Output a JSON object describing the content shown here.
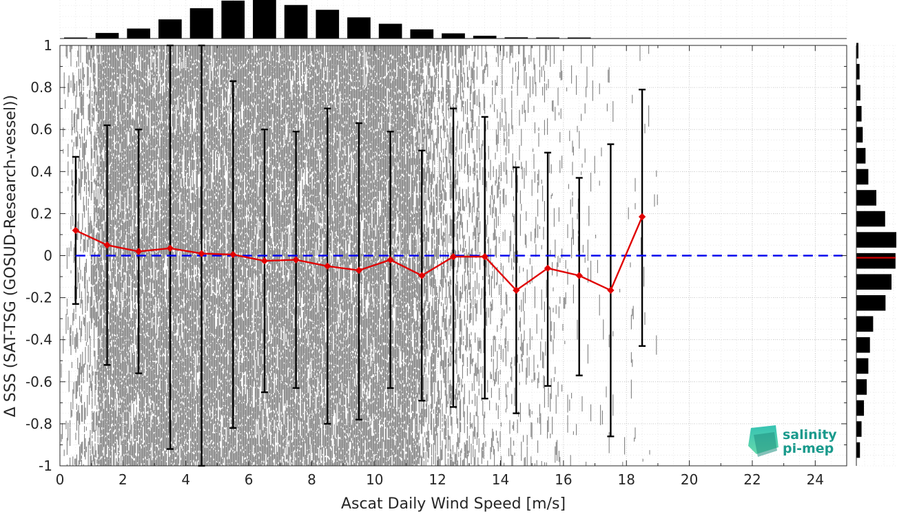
{
  "chart_data": {
    "type": "scatter",
    "xlabel": "Ascat Daily Wind Speed [m/s]",
    "ylabel": "Δ SSS (SAT-TSG (GOSUD-Research-vessel))",
    "xlim": [
      0,
      25
    ],
    "ylim": [
      -1,
      1
    ],
    "x_ticks": [
      0,
      2,
      4,
      6,
      8,
      10,
      12,
      14,
      16,
      18,
      20,
      22,
      24
    ],
    "y_ticks": [
      -1,
      -0.8,
      -0.6,
      -0.4,
      -0.2,
      0,
      0.2,
      0.4,
      0.6,
      0.8,
      1
    ],
    "grid": true,
    "reference_line": {
      "y": 0,
      "color": "#0000ee",
      "style": "dashed"
    },
    "scatter_color": "#808080",
    "mean_series": {
      "color": "#e00000",
      "x": [
        0.5,
        1.5,
        2.5,
        3.5,
        4.5,
        5.5,
        6.5,
        7.5,
        8.5,
        9.5,
        10.5,
        11.5,
        12.5,
        13.5,
        14.5,
        15.5,
        16.5,
        17.5,
        18.5
      ],
      "y": [
        0.12,
        0.05,
        0.02,
        0.035,
        0.01,
        0.005,
        -0.025,
        -0.02,
        -0.05,
        -0.07,
        -0.02,
        -0.095,
        -0.005,
        -0.005,
        -0.165,
        -0.06,
        -0.095,
        -0.165,
        0.185
      ]
    },
    "error_bars": {
      "color": "#000000",
      "lower": [
        -0.23,
        -0.52,
        -0.56,
        -0.92,
        -1.0,
        -0.82,
        -0.65,
        -0.63,
        -0.8,
        -0.78,
        -0.63,
        -0.69,
        -0.72,
        -0.68,
        -0.75,
        -0.62,
        -0.57,
        -0.86,
        -0.43
      ],
      "upper": [
        0.47,
        0.62,
        0.6,
        1.0,
        1.0,
        0.83,
        0.6,
        0.59,
        0.7,
        0.63,
        0.59,
        0.5,
        0.7,
        0.66,
        0.42,
        0.49,
        0.37,
        0.53,
        0.79
      ]
    },
    "top_histogram": {
      "bins": [
        0.5,
        1.5,
        2.5,
        3.5,
        4.5,
        5.5,
        6.5,
        7.5,
        8.5,
        9.5,
        10.5,
        11.5,
        12.5,
        13.5,
        14.5,
        15.5,
        16.5
      ],
      "relative_counts": [
        0.01,
        0.14,
        0.25,
        0.48,
        0.76,
        0.95,
        1.0,
        0.84,
        0.72,
        0.53,
        0.37,
        0.23,
        0.13,
        0.07,
        0.03,
        0.02,
        0.01
      ]
    },
    "right_histogram": {
      "bins": [
        0.975,
        0.875,
        0.775,
        0.675,
        0.575,
        0.475,
        0.375,
        0.275,
        0.175,
        0.075,
        -0.025,
        -0.125,
        -0.225,
        -0.325,
        -0.425,
        -0.525,
        -0.625,
        -0.725,
        -0.825,
        -0.925
      ],
      "relative_counts": [
        0.05,
        0.08,
        0.1,
        0.13,
        0.16,
        0.23,
        0.3,
        0.5,
        0.72,
        1.0,
        0.98,
        0.88,
        0.73,
        0.42,
        0.34,
        0.3,
        0.26,
        0.19,
        0.13,
        0.09
      ],
      "median_line": {
        "y": -0.01,
        "color": "#cc0000"
      }
    }
  },
  "logo": {
    "line1": "salinity",
    "line2": "pi-mep",
    "color": "#1a9a8c"
  }
}
